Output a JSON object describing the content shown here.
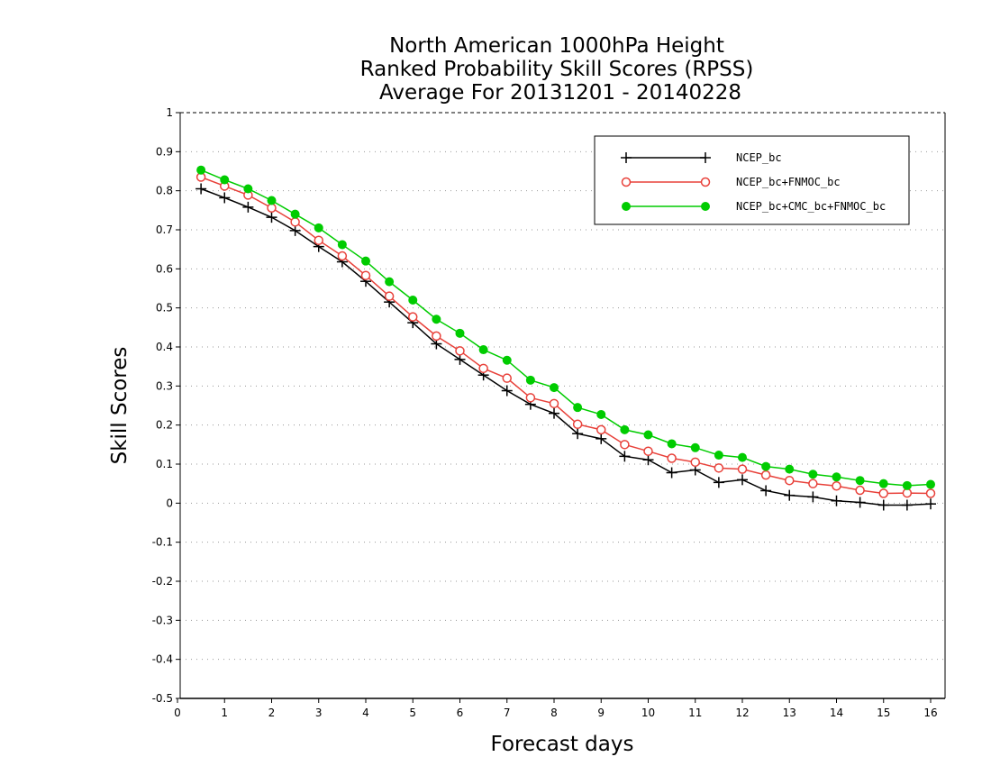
{
  "chart_data": {
    "type": "line",
    "title": [
      "North American 1000hPa Height",
      "Ranked Probability Skill Scores (RPSS)",
      "Average For 20131201 - 20140228"
    ],
    "xlabel": "Forecast days",
    "ylabel": "Skill Scores",
    "xlim": [
      0,
      16.25
    ],
    "ylim": [
      -0.5,
      1
    ],
    "xticks": [
      "0",
      "1",
      "2",
      "3",
      "4",
      "5",
      "6",
      "7",
      "8",
      "9",
      "10",
      "11",
      "12",
      "13",
      "14",
      "15",
      "16"
    ],
    "yticks": [
      "-0.5",
      "-0.4",
      "-0.3",
      "-0.2",
      "-0.1",
      "0",
      "0.1",
      "0.2",
      "0.3",
      "0.4",
      "0.5",
      "0.6",
      "0.7",
      "0.8",
      "0.9",
      "1"
    ],
    "grid": "horizontal dotted",
    "legend_position": "top-right",
    "x": [
      0.5,
      1,
      1.5,
      2,
      2.5,
      3,
      3.5,
      4,
      4.5,
      5,
      5.5,
      6,
      6.5,
      7,
      7.5,
      8,
      8.5,
      9,
      9.5,
      10,
      10.5,
      11,
      11.5,
      12,
      12.5,
      13,
      13.5,
      14,
      14.5,
      15,
      15.5,
      16
    ],
    "series": [
      {
        "name": "NCEP_bc",
        "color": "#000000",
        "marker": "plus",
        "values": [
          0.805,
          0.782,
          0.758,
          0.732,
          0.698,
          0.657,
          0.618,
          0.568,
          0.515,
          0.462,
          0.408,
          0.368,
          0.328,
          0.288,
          0.253,
          0.23,
          0.178,
          0.165,
          0.12,
          0.111,
          0.078,
          0.085,
          0.053,
          0.06,
          0.032,
          0.02,
          0.016,
          0.006,
          0.002,
          -0.005,
          -0.005,
          -0.002
        ]
      },
      {
        "name": "NCEP_bc+FNMOC_bc",
        "color": "#e8413a",
        "marker": "open-circle",
        "values": [
          0.835,
          0.812,
          0.789,
          0.756,
          0.72,
          0.673,
          0.633,
          0.583,
          0.53,
          0.477,
          0.428,
          0.39,
          0.345,
          0.32,
          0.27,
          0.255,
          0.202,
          0.188,
          0.15,
          0.133,
          0.115,
          0.105,
          0.09,
          0.087,
          0.072,
          0.058,
          0.05,
          0.044,
          0.033,
          0.025,
          0.026,
          0.025
        ]
      },
      {
        "name": "NCEP_bc+CMC_bc+FNMOC_bc",
        "color": "#00cc00",
        "marker": "filled-circle",
        "values": [
          0.853,
          0.828,
          0.805,
          0.775,
          0.74,
          0.705,
          0.662,
          0.62,
          0.567,
          0.52,
          0.471,
          0.435,
          0.393,
          0.366,
          0.315,
          0.296,
          0.245,
          0.227,
          0.188,
          0.175,
          0.152,
          0.142,
          0.123,
          0.117,
          0.094,
          0.087,
          0.074,
          0.067,
          0.058,
          0.05,
          0.045,
          0.048
        ]
      }
    ]
  }
}
